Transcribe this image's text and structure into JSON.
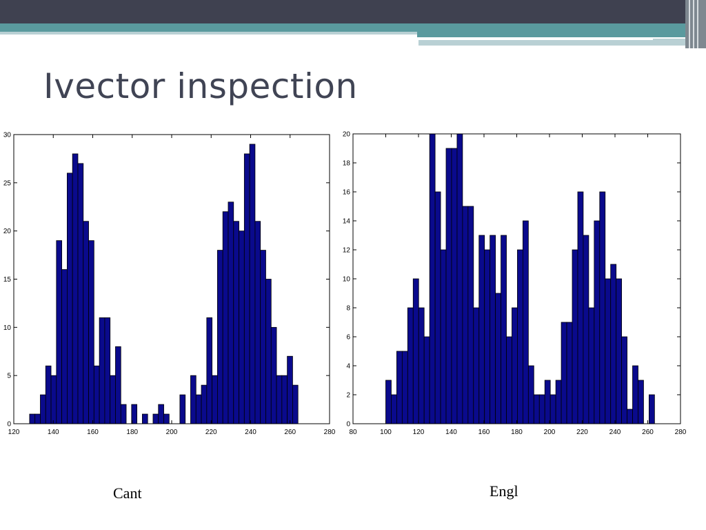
{
  "slide": {
    "title": "Ivector inspection"
  },
  "colors": {
    "header_dark": "#3f4150",
    "header_teal": "#5a9a9e",
    "header_light": "#b9d0d4",
    "bar_fill": "#0a0a8c",
    "bar_edge": "#000000",
    "title_text": "#404454"
  },
  "captions": {
    "left": "Cant",
    "right": "Engl"
  },
  "chart_data": [
    {
      "type": "bar",
      "title": "",
      "xlabel": "",
      "ylabel": "",
      "caption": "Cant",
      "xlim": [
        120,
        280
      ],
      "ylim": [
        0,
        30
      ],
      "xticks": [
        120,
        140,
        160,
        180,
        200,
        220,
        240,
        260,
        280
      ],
      "yticks": [
        0,
        5,
        10,
        15,
        20,
        25,
        30
      ],
      "grid": false,
      "bin_width": 2.72,
      "bin_start": 128,
      "values": [
        1,
        1,
        3,
        6,
        5,
        19,
        16,
        26,
        28,
        27,
        21,
        19,
        6,
        11,
        11,
        5,
        8,
        2,
        0,
        2,
        0,
        1,
        0,
        1,
        2,
        1,
        0,
        0,
        3,
        0,
        5,
        3,
        4,
        11,
        5,
        18,
        22,
        23,
        21,
        20,
        28,
        29,
        21,
        18,
        15,
        10,
        5,
        5,
        7,
        4
      ]
    },
    {
      "type": "bar",
      "title": "",
      "xlabel": "",
      "ylabel": "",
      "caption": "Engl",
      "xlim": [
        80,
        280
      ],
      "ylim": [
        0,
        20
      ],
      "xticks": [
        80,
        100,
        120,
        140,
        160,
        180,
        200,
        220,
        240,
        260,
        280
      ],
      "yticks": [
        0,
        2,
        4,
        6,
        8,
        10,
        12,
        14,
        16,
        18,
        20
      ],
      "grid": false,
      "bin_width": 3.35,
      "bin_start": 100,
      "values": [
        3,
        2,
        5,
        5,
        8,
        10,
        8,
        6,
        20,
        16,
        12,
        19,
        19,
        20,
        15,
        15,
        8,
        13,
        12,
        13,
        9,
        13,
        6,
        8,
        12,
        14,
        4,
        2,
        2,
        3,
        2,
        3,
        7,
        7,
        12,
        16,
        13,
        8,
        14,
        16,
        10,
        11,
        10,
        6,
        1,
        4,
        3,
        0,
        2
      ]
    }
  ]
}
